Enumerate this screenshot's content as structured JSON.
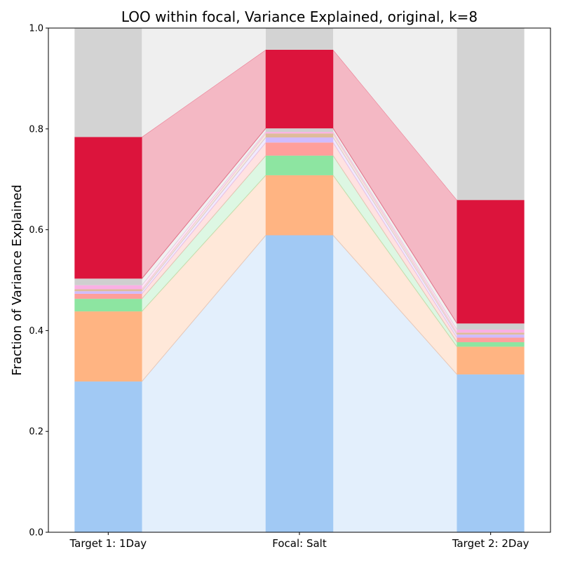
{
  "chart_data": {
    "type": "bar",
    "title": "LOO within focal, Variance Explained, original, k=8",
    "xlabel": "",
    "ylabel": "Fraction of Variance Explained",
    "ylim": [
      0,
      1
    ],
    "yticks": [
      "0.0",
      "0.2",
      "0.4",
      "0.6",
      "0.8",
      "1.0"
    ],
    "grid": false,
    "legend": "none",
    "categories": [
      "Target 1: 1Day",
      "Focal: Salt",
      "Target 2: 2Day"
    ],
    "stacked": true,
    "series": [
      {
        "color": "#a1c9f4",
        "values": [
          0.299,
          0.589,
          0.313
        ]
      },
      {
        "color": "#ffb482",
        "values": [
          0.139,
          0.119,
          0.055
        ]
      },
      {
        "color": "#8de5a1",
        "values": [
          0.025,
          0.039,
          0.009
        ]
      },
      {
        "color": "#ff9f9b",
        "values": [
          0.01,
          0.026,
          0.009
        ]
      },
      {
        "color": "#d0bbff",
        "values": [
          0.005,
          0.01,
          0.006
        ]
      },
      {
        "color": "#debb9b",
        "values": [
          0.004,
          0.008,
          0.004
        ]
      },
      {
        "color": "#fab0e4",
        "values": [
          0.008,
          0.003,
          0.006
        ]
      },
      {
        "color": "#cfcfcf",
        "values": [
          0.013,
          0.007,
          0.012
        ]
      },
      {
        "color": "#dc143c",
        "values": [
          0.281,
          0.156,
          0.245
        ]
      },
      {
        "color": "#d3d3d3",
        "values": [
          0.216,
          0.043,
          0.341
        ]
      }
    ]
  }
}
